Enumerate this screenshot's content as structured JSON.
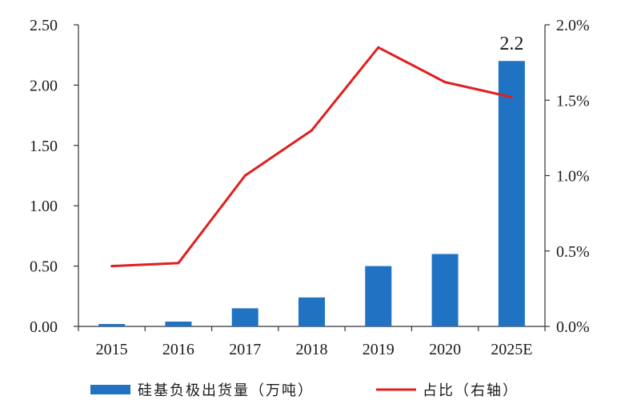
{
  "chart_data": {
    "type": "bar",
    "categories": [
      "2015",
      "2016",
      "2017",
      "2018",
      "2019",
      "2020",
      "2025E"
    ],
    "series": [
      {
        "name": "硅基负极出货量（万吨）",
        "type": "bar",
        "axis": "left",
        "color": "#1f73c2",
        "values": [
          0.02,
          0.04,
          0.15,
          0.24,
          0.5,
          0.6,
          2.2
        ]
      },
      {
        "name": "占比（右轴）",
        "type": "line",
        "axis": "right",
        "color": "#e01f1f",
        "values": [
          0.4,
          0.42,
          1.0,
          1.3,
          1.85,
          1.62,
          1.52
        ]
      }
    ],
    "left_axis": {
      "ticks": [
        "0.00",
        "0.50",
        "1.00",
        "1.50",
        "2.00",
        "2.50"
      ],
      "ylim": [
        0,
        2.5
      ]
    },
    "right_axis": {
      "ticks": [
        "0.0%",
        "0.5%",
        "1.0%",
        "1.5%",
        "2.0%"
      ],
      "ylim": [
        0,
        2.0
      ]
    },
    "data_labels": [
      {
        "category": "2025E",
        "text": "2.2"
      }
    ],
    "legend_position": "bottom",
    "grid": false
  }
}
